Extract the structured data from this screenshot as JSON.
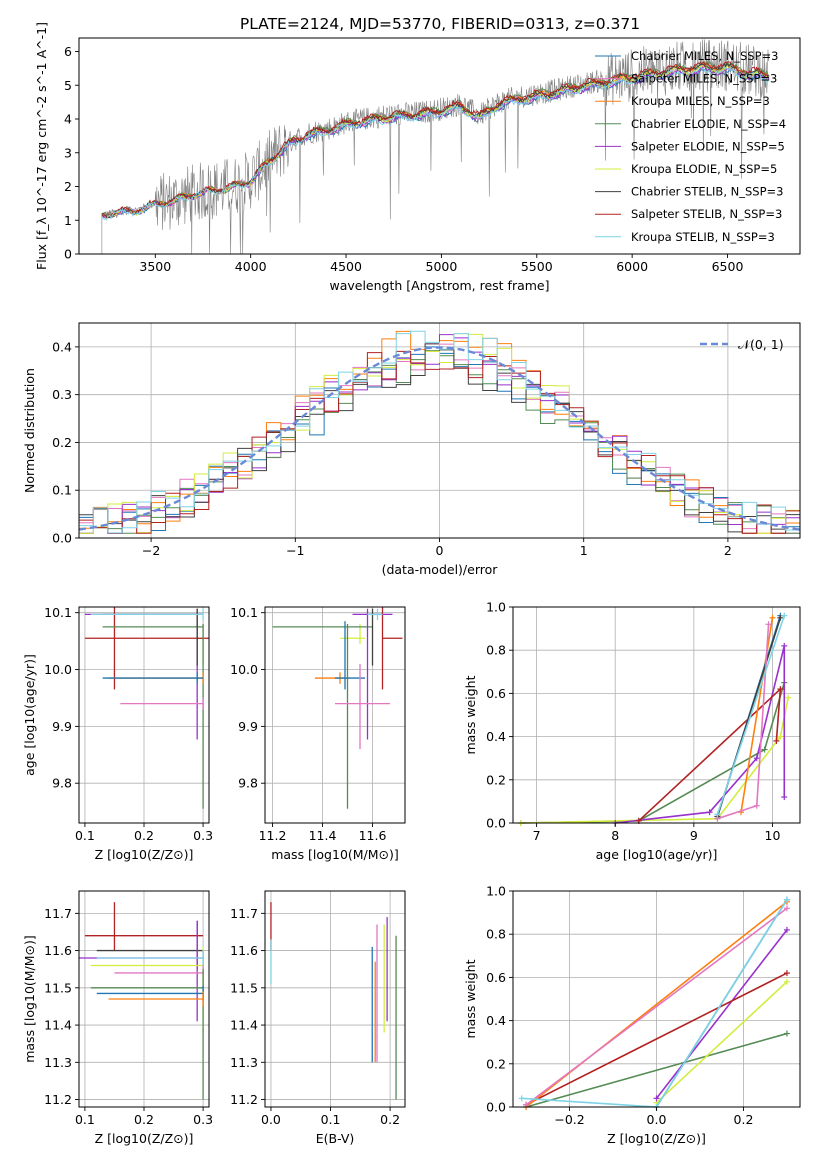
{
  "figure": {
    "title": "PLATE=2124, MJD=53770, FIBERID=0313, z=0.371"
  },
  "series_styles": [
    {
      "name": "Chabrier MILES, N$_{SSP}$=3",
      "color": "#1f77b4"
    },
    {
      "name": "Salpeter MILES, N$_{SSP}$=3",
      "color": "#e377c2"
    },
    {
      "name": "Kroupa MILES, N$_{SSP}$=3",
      "color": "#ff7f0e"
    },
    {
      "name": "Chabrier ELODIE, N$_{SSP}$=4",
      "color": "#548b54"
    },
    {
      "name": "Salpeter ELODIE, N$_{SSP}$=5",
      "color": "#9932cc"
    },
    {
      "name": "Kroupa ELODIE, N$_{SSP}$=5",
      "color": "#d4ec3e"
    },
    {
      "name": "Chabrier STELIB, N$_{SSP}$=3",
      "color": "#404040"
    },
    {
      "name": "Salpeter STELIB, N$_{SSP}$=3",
      "color": "#b22222"
    },
    {
      "name": "Kroupa STELIB, N$_{SSP}$=3",
      "color": "#7fd3e6"
    }
  ],
  "legend_labels": [
    "Chabrier MILES, N_SSP=3",
    "Salpeter MILES, N_SSP=3",
    "Kroupa MILES, N_SSP=3",
    "Chabrier ELODIE, N_SSP=4",
    "Salpeter ELODIE, N_SSP=5",
    "Kroupa ELODIE, N_SSP=5",
    "Chabrier STELIB, N_SSP=3",
    "Salpeter STELIB, N_SSP=3",
    "Kroupa STELIB, N_SSP=3"
  ],
  "chart_data": [
    {
      "id": "spectrum",
      "type": "line",
      "xlabel": "wavelength [Angstrom, rest frame]",
      "ylabel": "Flux [f_λ 10^-17 erg cm^-2 s^-1 A^-1]",
      "xlim": [
        3100,
        6880
      ],
      "ylim": [
        0,
        6.4
      ],
      "xticks": [
        3500,
        4000,
        4500,
        5000,
        5500,
        6000,
        6500
      ],
      "yticks": [
        0,
        1,
        2,
        3,
        4,
        5,
        6
      ],
      "legend": "upper right",
      "data_color": "#808080",
      "continuum_x": [
        3220,
        3300,
        3400,
        3500,
        3600,
        3700,
        3800,
        3900,
        4000,
        4100,
        4200,
        4300,
        4400,
        4500,
        4600,
        4700,
        4800,
        4900,
        5000,
        5100,
        5200,
        5300,
        5400,
        5500,
        5600,
        5700,
        5800,
        5900,
        6000,
        6100,
        6200,
        6300,
        6400,
        6500,
        6600,
        6700
      ],
      "continuum_y": [
        1.15,
        1.25,
        1.3,
        1.5,
        1.6,
        1.8,
        1.9,
        2.0,
        2.2,
        2.8,
        3.3,
        3.6,
        3.7,
        3.9,
        4.0,
        4.1,
        4.15,
        4.2,
        4.3,
        4.45,
        4.1,
        4.5,
        4.65,
        4.75,
        4.85,
        5.0,
        5.1,
        5.2,
        5.3,
        5.4,
        5.5,
        5.55,
        5.6,
        5.6,
        5.45,
        5.35
      ]
    },
    {
      "id": "residuals",
      "type": "line",
      "xlabel": "(data-model)/error",
      "ylabel": "Normed distribution",
      "xlim": [
        -2.5,
        2.5
      ],
      "ylim": [
        0,
        0.45
      ],
      "xticks": [
        -2,
        -1,
        0,
        1,
        2
      ],
      "yticks": [
        0.0,
        0.1,
        0.2,
        0.3,
        0.4
      ],
      "grid": true,
      "legend": "upper right",
      "gaussian_label": "𝒩(0, 1)",
      "gaussian_color": "#6a8ad8"
    },
    {
      "id": "age_vs_Z",
      "type": "scatter",
      "xlabel": "Z [log10(Z/Z⊙)]",
      "ylabel": "age [log10(age/yr)]",
      "xlim": [
        0.09,
        0.31
      ],
      "ylim": [
        9.73,
        10.11
      ],
      "xticks": [
        0.1,
        0.2,
        0.3
      ],
      "yticks": [
        9.8,
        9.9,
        10.0,
        10.1
      ],
      "grid": true,
      "errorbars": [
        {
          "x": 0.3,
          "xerr": [
            0.01,
            0.0
          ],
          "y": 10.055,
          "yerr": [
            0.045,
            0.025
          ],
          "color": "#d4ec3e"
        },
        {
          "x": 0.15,
          "xerr": [
            0.05,
            0.16
          ],
          "y": 10.055,
          "yerr": [
            0.09,
            0.08
          ],
          "color": "#b22222"
        },
        {
          "x": 0.3,
          "xerr": [
            0.17,
            0.0
          ],
          "y": 10.075,
          "yerr": [
            0.32,
            0.005
          ],
          "color": "#548b54"
        },
        {
          "x": 0.29,
          "xerr": [
            0.19,
            0.01
          ],
          "y": 10.097,
          "yerr": [
            0.22,
            0.01
          ],
          "color": "#9932cc"
        },
        {
          "x": 0.29,
          "xerr": [
            0.16,
            0.01
          ],
          "y": 10.097,
          "yerr": [
            0.09,
            0.01
          ],
          "color": "#404040"
        },
        {
          "x": 0.3,
          "xerr": [
            0.19,
            0.0
          ],
          "y": 10.097,
          "yerr": [
            0.01,
            0.01
          ],
          "color": "#7fd3e6"
        },
        {
          "x": 0.3,
          "xerr": [
            0.16,
            0.0
          ],
          "y": 9.985,
          "yerr": [
            0.01,
            0.01
          ],
          "color": "#ff7f0e"
        },
        {
          "x": 0.29,
          "xerr": [
            0.16,
            0.01
          ],
          "y": 9.985,
          "yerr": [
            0.01,
            0.01
          ],
          "color": "#1f77b4"
        },
        {
          "x": 0.3,
          "xerr": [
            0.14,
            0.0
          ],
          "y": 9.94,
          "yerr": [
            0.01,
            0.01
          ],
          "color": "#e377c2"
        }
      ]
    },
    {
      "id": "age_vs_mass",
      "type": "scatter",
      "xlabel": "mass [log10(M/M⊙)]",
      "ylabel": "",
      "xlim": [
        11.17,
        11.73
      ],
      "ylim": [
        9.73,
        10.11
      ],
      "xticks": [
        11.2,
        11.4,
        11.6
      ],
      "yticks": [
        9.8,
        9.9,
        10.0,
        10.1
      ],
      "grid": true,
      "errorbars": [
        {
          "x": 11.55,
          "xerr": [
            0.08,
            0.02
          ],
          "y": 10.055,
          "yerr": [
            0.01,
            0.025
          ],
          "color": "#d4ec3e"
        },
        {
          "x": 11.64,
          "xerr": [
            0.0,
            0.08
          ],
          "y": 10.055,
          "yerr": [
            0.09,
            0.08
          ],
          "color": "#b22222"
        },
        {
          "x": 11.5,
          "xerr": [
            0.3,
            0.1
          ],
          "y": 10.075,
          "yerr": [
            0.32,
            0.005
          ],
          "color": "#548b54"
        },
        {
          "x": 11.58,
          "xerr": [
            0.06,
            0.1
          ],
          "y": 10.097,
          "yerr": [
            0.22,
            0.01
          ],
          "color": "#9932cc"
        },
        {
          "x": 11.6,
          "xerr": [
            0.0,
            0.04
          ],
          "y": 10.097,
          "yerr": [
            0.09,
            0.01
          ],
          "color": "#404040"
        },
        {
          "x": 11.62,
          "xerr": [
            0.04,
            0.02
          ],
          "y": 10.097,
          "yerr": [
            0.01,
            0.01
          ],
          "color": "#7fd3e6"
        },
        {
          "x": 11.47,
          "xerr": [
            0.1,
            0.04
          ],
          "y": 9.985,
          "yerr": [
            0.01,
            0.01
          ],
          "color": "#ff7f0e"
        },
        {
          "x": 11.49,
          "xerr": [
            0.04,
            0.08
          ],
          "y": 9.985,
          "yerr": [
            0.02,
            0.1
          ],
          "color": "#1f77b4"
        },
        {
          "x": 11.55,
          "xerr": [
            0.1,
            0.12
          ],
          "y": 9.94,
          "yerr": [
            0.08,
            0.07
          ],
          "color": "#e377c2"
        }
      ]
    },
    {
      "id": "massweight_vs_age",
      "type": "line",
      "xlabel": "age [log10(age/yr)]",
      "ylabel": "mass weight",
      "xlim": [
        6.7,
        10.35
      ],
      "ylim": [
        0,
        1.0
      ],
      "xticks": [
        7,
        8,
        9,
        10
      ],
      "yticks": [
        0.0,
        0.2,
        0.4,
        0.6,
        0.8,
        1.0
      ],
      "grid": true,
      "series": [
        {
          "color": "#548b54",
          "x": [
            6.8,
            8.3,
            9.9,
            10.15
          ],
          "y": [
            0.0,
            0.01,
            0.34,
            0.65
          ]
        },
        {
          "color": "#d4ec3e",
          "x": [
            6.8,
            9.3,
            10.1,
            10.2
          ],
          "y": [
            0.0,
            0.02,
            0.4,
            0.58
          ]
        },
        {
          "color": "#9932cc",
          "x": [
            8.0,
            9.2,
            9.8,
            10.15,
            10.15
          ],
          "y": [
            0.0,
            0.05,
            0.3,
            0.82,
            0.12
          ]
        },
        {
          "color": "#b22222",
          "x": [
            8.3,
            10.1,
            10.05
          ],
          "y": [
            0.01,
            0.62,
            0.38
          ]
        },
        {
          "color": "#ff7f0e",
          "x": [
            9.6,
            10.0
          ],
          "y": [
            0.05,
            0.95
          ]
        },
        {
          "color": "#1f77b4",
          "x": [
            9.3,
            10.1
          ],
          "y": [
            0.03,
            0.96
          ]
        },
        {
          "color": "#404040",
          "x": [
            9.3,
            10.1
          ],
          "y": [
            0.03,
            0.95
          ]
        },
        {
          "color": "#e377c2",
          "x": [
            9.3,
            9.8,
            9.95
          ],
          "y": [
            0.02,
            0.08,
            0.92
          ]
        },
        {
          "color": "#7fd3e6",
          "x": [
            9.3,
            10.15
          ],
          "y": [
            0.04,
            0.96
          ]
        }
      ]
    },
    {
      "id": "mass_vs_Z",
      "type": "scatter",
      "xlabel": "Z [log10(Z/Z⊙)]",
      "ylabel": "mass [log10(M/M⊙)]",
      "xlim": [
        0.09,
        0.31
      ],
      "ylim": [
        11.18,
        11.76
      ],
      "xticks": [
        0.1,
        0.2,
        0.3
      ],
      "yticks": [
        11.2,
        11.3,
        11.4,
        11.5,
        11.6,
        11.7
      ],
      "grid": true,
      "errorbars": [
        {
          "x": 0.15,
          "xerr": [
            0.05,
            0.15
          ],
          "y": 11.64,
          "yerr": [
            0.04,
            0.09
          ],
          "color": "#b22222"
        },
        {
          "x": 0.29,
          "xerr": [
            0.17,
            0.01
          ],
          "y": 11.6,
          "yerr": [
            0.05,
            0.08
          ],
          "color": "#404040"
        },
        {
          "x": 0.29,
          "xerr": [
            0.2,
            0.01
          ],
          "y": 11.58,
          "yerr": [
            0.17,
            0.1
          ],
          "color": "#9932cc"
        },
        {
          "x": 0.3,
          "xerr": [
            0.19,
            0.0
          ],
          "y": 11.56,
          "yerr": [
            0.18,
            0.05
          ],
          "color": "#d4ec3e"
        },
        {
          "x": 0.3,
          "xerr": [
            0.15,
            0.0
          ],
          "y": 11.54,
          "yerr": [
            0.06,
            0.06
          ],
          "color": "#e377c2"
        },
        {
          "x": 0.3,
          "xerr": [
            0.19,
            0.0
          ],
          "y": 11.5,
          "yerr": [
            0.3,
            0.05
          ],
          "color": "#548b54"
        },
        {
          "x": 0.3,
          "xerr": [
            0.18,
            0.0
          ],
          "y": 11.485,
          "yerr": [
            0.02,
            0.02
          ],
          "color": "#1f77b4"
        },
        {
          "x": 0.3,
          "xerr": [
            0.16,
            0.0
          ],
          "y": 11.47,
          "yerr": [
            0.02,
            0.02
          ],
          "color": "#ff7f0e"
        },
        {
          "x": 0.3,
          "xerr": [
            0.18,
            0.0
          ],
          "y": 11.58,
          "yerr": [
            0.02,
            0.02
          ],
          "color": "#7fd3e6"
        }
      ]
    },
    {
      "id": "mass_vs_ebv",
      "type": "scatter",
      "xlabel": "E(B-V)",
      "ylabel": "",
      "xlim": [
        -0.01,
        0.225
      ],
      "ylim": [
        11.18,
        11.76
      ],
      "xticks": [
        0.0,
        0.1,
        0.2
      ],
      "yticks": [
        11.2,
        11.3,
        11.4,
        11.5,
        11.6,
        11.7
      ],
      "grid": true,
      "errorbars": [
        {
          "x": 0.0,
          "y": 11.64,
          "yerr": [
            0.04,
            0.09
          ],
          "color": "#b22222"
        },
        {
          "x": 0.0,
          "y": 11.58,
          "yerr": [
            0.07,
            0.05
          ],
          "color": "#7fd3e6"
        },
        {
          "x": 0.17,
          "y": 11.47,
          "yerr": [
            0.17,
            0.14
          ],
          "color": "#1f77b4"
        },
        {
          "x": 0.175,
          "y": 11.47,
          "yerr": [
            0.17,
            0.1
          ],
          "color": "#ff7f0e"
        },
        {
          "x": 0.178,
          "y": 11.5,
          "yerr": [
            0.2,
            0.17
          ],
          "color": "#e377c2"
        },
        {
          "x": 0.19,
          "y": 11.5,
          "yerr": [
            0.12,
            0.17
          ],
          "color": "#d4ec3e"
        },
        {
          "x": 0.195,
          "y": 11.55,
          "yerr": [
            0.14,
            0.14
          ],
          "color": "#9932cc"
        },
        {
          "x": 0.21,
          "y": 11.42,
          "yerr": [
            0.22,
            0.22
          ],
          "color": "#548b54"
        }
      ]
    },
    {
      "id": "massweight_vs_Z",
      "type": "line",
      "xlabel": "Z [log10(Z/Z⊙)]",
      "ylabel": "mass weight",
      "xlim": [
        -0.33,
        0.33
      ],
      "ylim": [
        0,
        1.0
      ],
      "xticks": [
        -0.2,
        0.0,
        0.2
      ],
      "yticks": [
        0.0,
        0.2,
        0.4,
        0.6,
        0.8,
        1.0
      ],
      "grid": true,
      "series": [
        {
          "color": "#548b54",
          "x": [
            -0.3,
            0.3
          ],
          "y": [
            0.0,
            0.34
          ]
        },
        {
          "color": "#d4ec3e",
          "x": [
            0.0,
            0.3
          ],
          "y": [
            0.02,
            0.58
          ]
        },
        {
          "color": "#9932cc",
          "x": [
            0.0,
            0.3
          ],
          "y": [
            0.04,
            0.82
          ]
        },
        {
          "color": "#b22222",
          "x": [
            -0.3,
            0.3
          ],
          "y": [
            0.01,
            0.62
          ]
        },
        {
          "color": "#ff7f0e",
          "x": [
            -0.3,
            0.3
          ],
          "y": [
            0.0,
            0.95
          ]
        },
        {
          "color": "#e377c2",
          "x": [
            -0.3,
            0.3
          ],
          "y": [
            0.01,
            0.92
          ]
        },
        {
          "color": "#1f77b4",
          "x": [
            0.0,
            0.3
          ],
          "y": [
            0.0,
            0.96
          ]
        },
        {
          "color": "#7fd3e6",
          "x": [
            -0.31,
            0.0,
            0.3
          ],
          "y": [
            0.04,
            0.0,
            0.96
          ]
        }
      ]
    }
  ]
}
